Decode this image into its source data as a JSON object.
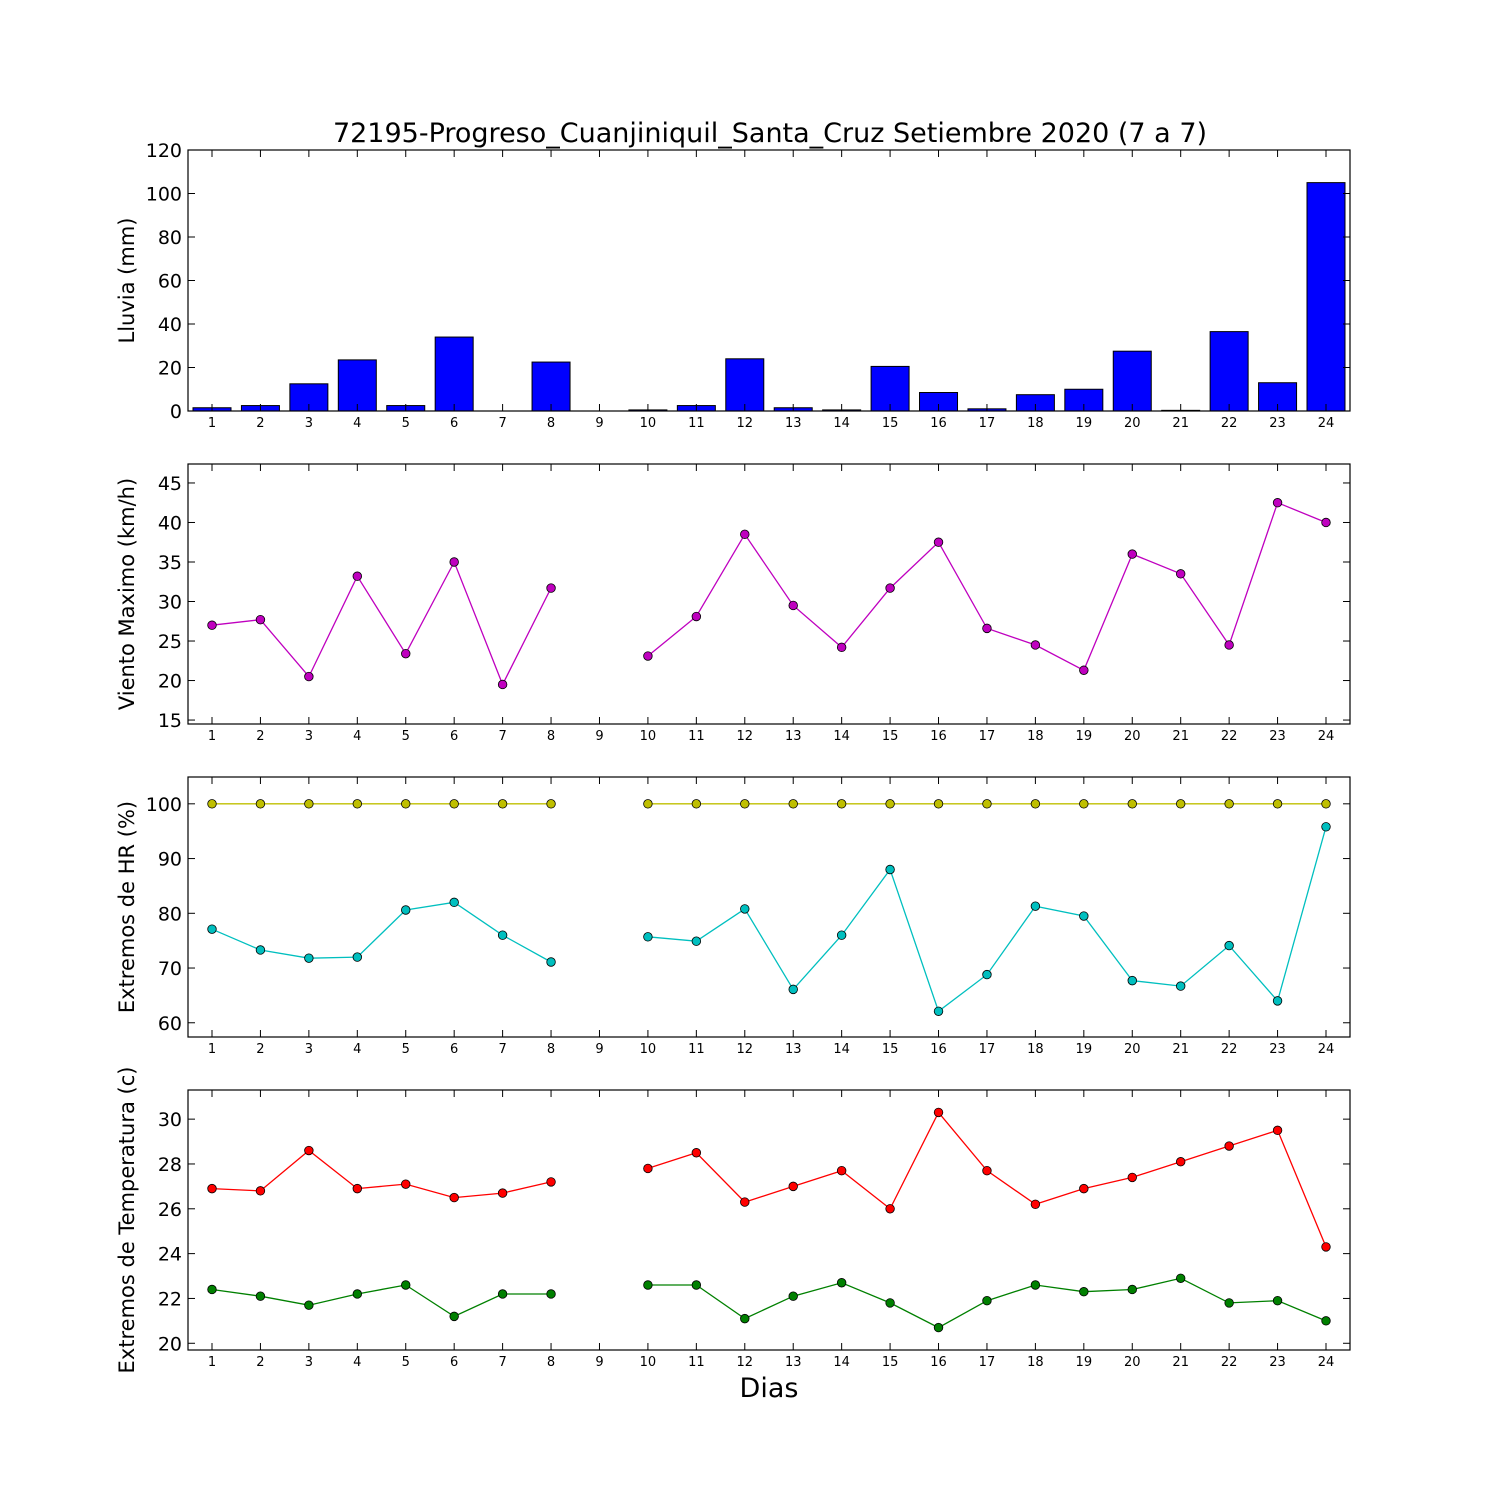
{
  "figure": {
    "title": "72195-Progreso_Cuanjiniquil_Santa_Cruz Setiembre 2020  (7 a 7)",
    "xlabel": "Dias"
  },
  "chart_data": [
    {
      "type": "bar",
      "ylabel": "Lluvia (mm)",
      "categories": [
        1,
        2,
        3,
        4,
        5,
        6,
        7,
        8,
        9,
        10,
        11,
        12,
        13,
        14,
        15,
        16,
        17,
        18,
        19,
        20,
        21,
        22,
        23,
        24
      ],
      "ylim": [
        0,
        120
      ],
      "yticks": [
        0,
        20,
        40,
        60,
        80,
        100,
        120
      ],
      "series": [
        {
          "color": "#0000ff",
          "values": [
            1.5,
            2.5,
            12.5,
            23.5,
            2.5,
            34,
            0,
            22.5,
            null,
            0.5,
            2.5,
            24,
            1.5,
            0.5,
            20.5,
            8.5,
            1,
            7.5,
            10,
            27.5,
            0.3,
            36.5,
            13,
            105
          ]
        }
      ]
    },
    {
      "type": "line",
      "ylabel": "Viento Maximo (km/h)",
      "categories": [
        1,
        2,
        3,
        4,
        5,
        6,
        7,
        8,
        9,
        10,
        11,
        12,
        13,
        14,
        15,
        16,
        17,
        18,
        19,
        20,
        21,
        22,
        23,
        24
      ],
      "ylim": [
        14.5,
        47.4
      ],
      "yticks": [
        15,
        20,
        25,
        30,
        35,
        40,
        45
      ],
      "series": [
        {
          "color": "#bf00bf",
          "values": [
            27,
            27.7,
            20.5,
            33.2,
            23.4,
            35,
            19.5,
            31.7,
            null,
            23.1,
            28.1,
            38.5,
            29.5,
            24.2,
            31.7,
            37.5,
            26.6,
            24.5,
            21.3,
            36,
            33.5,
            24.5,
            42.5,
            40
          ]
        }
      ]
    },
    {
      "type": "line",
      "ylabel": "Extremos de HR (%)",
      "categories": [
        1,
        2,
        3,
        4,
        5,
        6,
        7,
        8,
        9,
        10,
        11,
        12,
        13,
        14,
        15,
        16,
        17,
        18,
        19,
        20,
        21,
        22,
        23,
        24
      ],
      "ylim": [
        57.4,
        104.9
      ],
      "yticks": [
        60,
        70,
        80,
        90,
        100
      ],
      "series": [
        {
          "color": "#bfbf00",
          "values": [
            100,
            100,
            100,
            100,
            100,
            100,
            100,
            100,
            null,
            100,
            100,
            100,
            100,
            100,
            100,
            100,
            100,
            100,
            100,
            100,
            100,
            100,
            100,
            100
          ]
        },
        {
          "color": "#00bfbf",
          "values": [
            77.1,
            73.3,
            71.8,
            72,
            80.6,
            82,
            76,
            71.1,
            null,
            75.7,
            74.9,
            80.8,
            66.1,
            76,
            88,
            62.1,
            68.8,
            81.3,
            79.5,
            67.7,
            66.7,
            74.1,
            64,
            95.8
          ]
        }
      ]
    },
    {
      "type": "line",
      "ylabel": "Extremos de Temperatura (c)",
      "categories": [
        1,
        2,
        3,
        4,
        5,
        6,
        7,
        8,
        9,
        10,
        11,
        12,
        13,
        14,
        15,
        16,
        17,
        18,
        19,
        20,
        21,
        22,
        23,
        24
      ],
      "ylim": [
        19.7,
        31.3
      ],
      "yticks": [
        20,
        22,
        24,
        26,
        28,
        30
      ],
      "series": [
        {
          "color": "#ff0000",
          "values": [
            26.9,
            26.8,
            28.6,
            26.9,
            27.1,
            26.5,
            26.7,
            27.2,
            null,
            27.8,
            28.5,
            26.3,
            27,
            27.7,
            26,
            30.3,
            27.7,
            26.2,
            26.9,
            27.4,
            28.1,
            28.8,
            29.5,
            24.3
          ]
        },
        {
          "color": "#008000",
          "values": [
            22.4,
            22.1,
            21.7,
            22.2,
            22.6,
            21.2,
            22.2,
            22.2,
            null,
            22.6,
            22.6,
            21.1,
            22.1,
            22.7,
            21.8,
            20.7,
            21.9,
            22.6,
            22.3,
            22.4,
            22.9,
            21.8,
            21.9,
            21
          ]
        }
      ]
    }
  ]
}
